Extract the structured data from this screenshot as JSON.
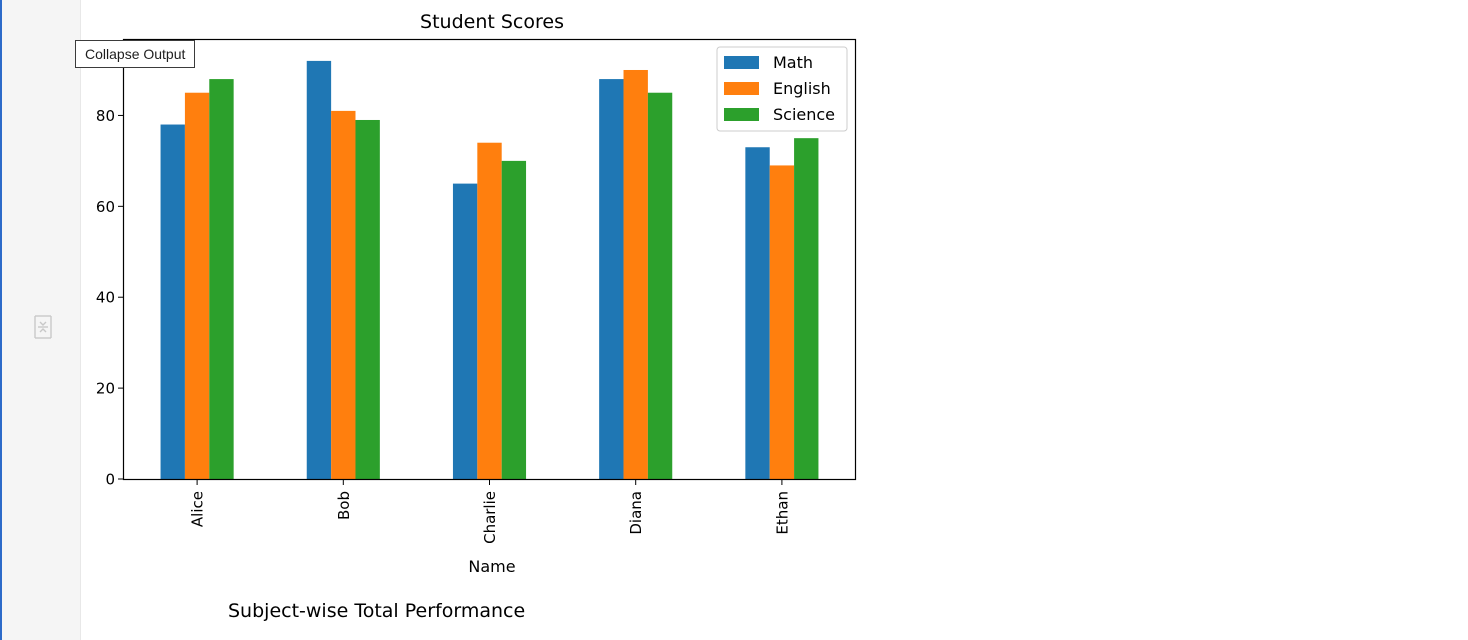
{
  "output": {
    "tooltip": "Collapse Output",
    "collapse_icon": "collapse-output-icon",
    "accent_color": "#2d6bc9"
  },
  "chart_data": {
    "type": "bar",
    "title": "Student Scores",
    "xlabel": "Name",
    "ylabel": "",
    "categories": [
      "Alice",
      "Bob",
      "Charlie",
      "Diana",
      "Ethan"
    ],
    "series": [
      {
        "name": "Math",
        "color": "#1f77b4",
        "values": [
          78,
          92,
          65,
          88,
          73
        ]
      },
      {
        "name": "English",
        "color": "#ff7f0e",
        "values": [
          85,
          81,
          74,
          90,
          69
        ]
      },
      {
        "name": "Science",
        "color": "#2ca02c",
        "values": [
          88,
          79,
          70,
          85,
          75
        ]
      }
    ],
    "ylim": [
      0,
      96.6
    ],
    "yticks": [
      "0",
      "20",
      "40",
      "60",
      "80"
    ],
    "grid": false,
    "legend": "top-right"
  },
  "next_chart": {
    "title": "Subject-wise Total Performance"
  }
}
